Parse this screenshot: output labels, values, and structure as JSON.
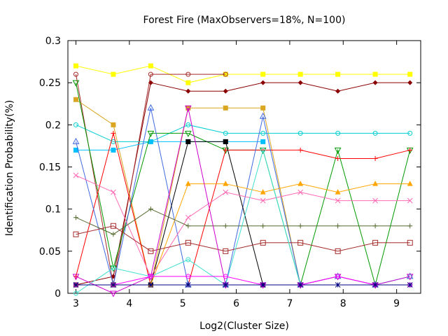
{
  "chart_data": {
    "type": "line",
    "title": "Forest Fire (MaxObservers=18%, N=100)",
    "xlabel": "Log2(Cluster Size)",
    "ylabel": "Identification Probability(%)",
    "xlim": [
      2.85,
      9.45
    ],
    "ylim": [
      0,
      0.3
    ],
    "xticks": [
      3,
      4,
      5,
      6,
      7,
      8,
      9
    ],
    "yticks": [
      0,
      0.05,
      0.1,
      0.15,
      0.2,
      0.25,
      0.3
    ],
    "ytick_labels": [
      "0",
      "0.05",
      "0.1",
      "0.15",
      "0.2",
      "0.25",
      "0.3"
    ],
    "grid": false,
    "legend": "none",
    "x": [
      3,
      3.7,
      4.4,
      5.1,
      5.8,
      6.5,
      7.2,
      7.9,
      8.6,
      9.25
    ],
    "series": [
      {
        "color": "#ffff00",
        "marker": "square-filled",
        "values": [
          0.27,
          0.26,
          0.27,
          0.25,
          0.26,
          0.26,
          0.26,
          0.26,
          0.26,
          0.26
        ]
      },
      {
        "color": "#8b0000",
        "marker": "diamond-filled",
        "values": [
          0.01,
          0.02,
          0.25,
          0.24,
          0.24,
          0.25,
          0.25,
          0.24,
          0.25,
          0.25
        ]
      },
      {
        "color": "#a52a2a",
        "marker": "circle-open",
        "values": [
          0.26,
          0.01,
          0.26,
          0.26,
          0.26,
          null,
          null,
          null,
          null,
          null
        ]
      },
      {
        "color": "#daa520",
        "marker": "square-filled",
        "values": [
          0.23,
          0.2,
          0.01,
          0.22,
          0.22,
          0.22,
          0.01,
          null,
          null,
          null
        ]
      },
      {
        "color": "#00ced1",
        "marker": "circle-open",
        "values": [
          0.2,
          0.18,
          0.18,
          0.2,
          0.19,
          0.19,
          0.19,
          0.19,
          0.19,
          0.19
        ]
      },
      {
        "color": "#00bfff",
        "marker": "square-filled",
        "values": [
          0.17,
          0.17,
          0.18,
          0.18,
          0.18,
          0.18,
          null,
          null,
          null,
          null
        ]
      },
      {
        "color": "#009900",
        "marker": "triangle-down-open",
        "values": [
          0.25,
          0.03,
          0.19,
          0.19,
          0.17,
          0.17,
          0.01,
          0.17,
          0.01,
          0.17
        ]
      },
      {
        "color": "#ff0000",
        "marker": "plus",
        "values": [
          0.02,
          0.19,
          0.01,
          0.01,
          0.17,
          0.17,
          0.17,
          0.16,
          0.16,
          0.17
        ]
      },
      {
        "color": "#4169e1",
        "marker": "triangle-open",
        "values": [
          0.18,
          0.01,
          0.22,
          0.01,
          0.01,
          0.21,
          0.01,
          0.02,
          0.01,
          0.02
        ]
      },
      {
        "color": "#000000",
        "marker": "square-filled",
        "values": [
          0.01,
          0.01,
          0.01,
          0.18,
          0.18,
          0.01,
          null,
          null,
          null,
          null
        ]
      },
      {
        "color": "#ff69b4",
        "marker": "x",
        "values": [
          0.14,
          0.12,
          0.02,
          0.09,
          0.12,
          0.11,
          0.12,
          0.11,
          0.11,
          0.11
        ]
      },
      {
        "color": "#ffa500",
        "marker": "triangle-filled",
        "values": [
          0.01,
          0.01,
          0.01,
          0.13,
          0.13,
          0.12,
          0.13,
          0.12,
          0.13,
          0.13
        ]
      },
      {
        "color": "#556b2f",
        "marker": "plus",
        "values": [
          0.09,
          0.07,
          0.1,
          0.08,
          0.08,
          0.08,
          0.08,
          0.08,
          0.08,
          0.08
        ]
      },
      {
        "color": "#a52a2a",
        "marker": "square-open",
        "values": [
          0.07,
          0.08,
          0.05,
          0.06,
          0.05,
          0.06,
          0.06,
          0.05,
          0.06,
          0.06
        ]
      },
      {
        "color": "#40e0d0",
        "marker": "circle-open",
        "values": [
          0.0,
          0.03,
          0.02,
          0.04,
          0.01,
          0.17,
          0.01,
          0.02,
          0.01,
          0.02
        ]
      },
      {
        "color": "#cc00cc",
        "marker": "triangle-down-open",
        "values": [
          0.02,
          0.0,
          0.02,
          0.22,
          0.01,
          0.01,
          0.01,
          0.02,
          0.01,
          0.02
        ]
      },
      {
        "color": "#ff00ff",
        "marker": "circle-open",
        "values": [
          0.01,
          0.01,
          0.02,
          0.02,
          0.02,
          0.01,
          0.01,
          0.02,
          0.01,
          0.01
        ]
      },
      {
        "color": "#000080",
        "marker": "asterisk",
        "values": [
          0.01,
          0.01,
          0.01,
          0.01,
          0.01,
          0.01,
          0.01,
          0.01,
          0.01,
          0.01
        ]
      }
    ]
  }
}
